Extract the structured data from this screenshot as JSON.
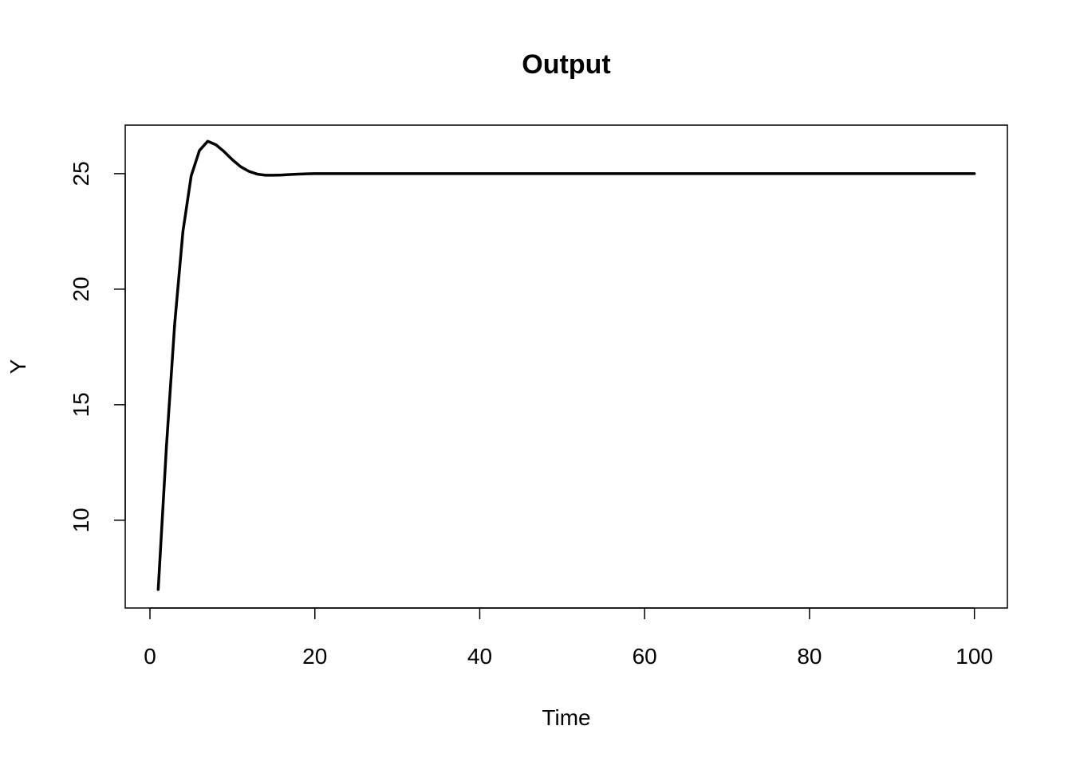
{
  "chart_data": {
    "type": "line",
    "title": "Output",
    "xlabel": "Time",
    "ylabel": "Y",
    "xlim": [
      -3,
      104
    ],
    "ylim": [
      6.2,
      27.1
    ],
    "xticks": [
      0,
      20,
      40,
      60,
      80,
      100
    ],
    "yticks": [
      10,
      15,
      20,
      25
    ],
    "grid": false,
    "series": [
      {
        "x": [
          1,
          2,
          3,
          4,
          5,
          6,
          7,
          8,
          9,
          10,
          11,
          12,
          13,
          14,
          15,
          16,
          17,
          18,
          19,
          20,
          25,
          30,
          40,
          50,
          60,
          70,
          80,
          90,
          100
        ],
        "values": [
          7.0,
          13.2,
          18.5,
          22.5,
          24.9,
          26.0,
          26.4,
          26.25,
          25.95,
          25.6,
          25.3,
          25.1,
          24.98,
          24.93,
          24.93,
          24.94,
          24.96,
          24.98,
          24.99,
          25.0,
          25.0,
          25.0,
          25.0,
          25.0,
          25.0,
          25.0,
          25.0,
          25.0,
          25.0
        ],
        "color": "#000000"
      }
    ]
  }
}
